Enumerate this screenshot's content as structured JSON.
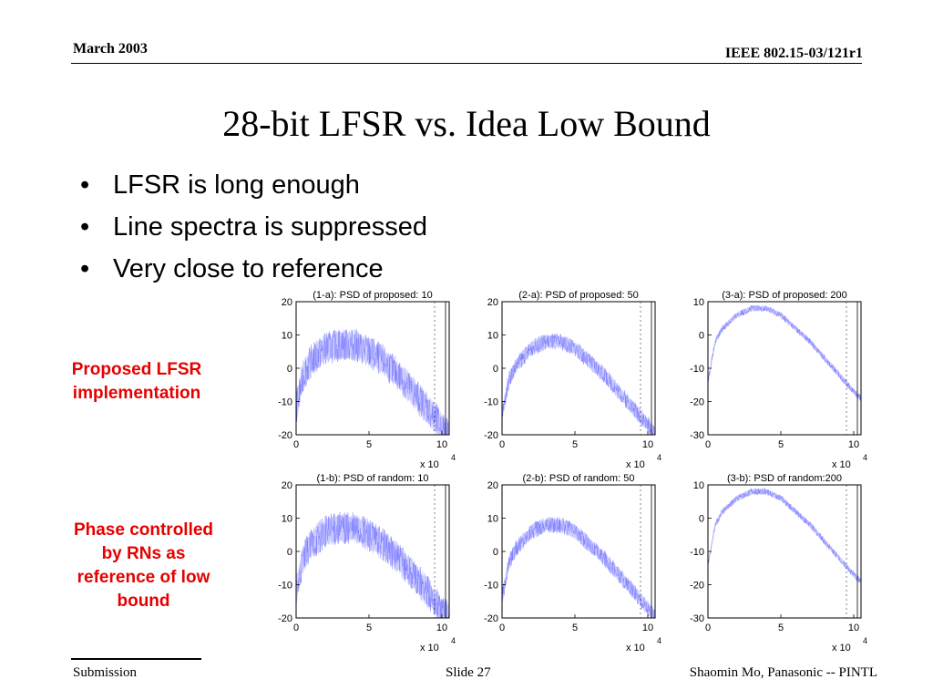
{
  "header": {
    "date": "March 2003",
    "doc_id": "IEEE 802.15-03/121r1"
  },
  "title": "28-bit LFSR vs. Idea Low Bound",
  "bullets": [
    "LFSR is long enough",
    "Line spectra is suppressed",
    "Very close to reference"
  ],
  "labels": {
    "proposed": [
      "Proposed LFSR",
      "implementation"
    ],
    "random": [
      "Phase controlled",
      "by RNs as",
      "reference of low",
      "bound"
    ]
  },
  "footer": {
    "left": "Submission",
    "center": "Slide 27",
    "right": "Shaomin Mo, Panasonic -- PINTL"
  },
  "colors": {
    "accent": "#e60000",
    "trace": "#6b6bff"
  },
  "chart_data": [
    {
      "type": "line",
      "title": "(1-a): PSD of proposed: 10",
      "xlim": [
        0,
        105000
      ],
      "ylim": [
        -20,
        20
      ],
      "xticks": [
        "0",
        "5",
        "10"
      ],
      "yticks": [
        "20",
        "10",
        "0",
        "-10",
        "-20"
      ],
      "multiplier": "x 10",
      "multiplier_exp": "4",
      "x": [
        0,
        5000,
        10000,
        20000,
        30000,
        40000,
        50000,
        60000,
        70000,
        80000,
        90000,
        100000,
        105000
      ],
      "y": [
        -12,
        -2,
        2,
        6,
        7,
        7,
        5,
        2,
        -2,
        -7,
        -12,
        -18,
        -20
      ],
      "spread": 5
    },
    {
      "type": "line",
      "title": "(2-a): PSD of proposed: 50",
      "xlim": [
        0,
        105000
      ],
      "ylim": [
        -20,
        20
      ],
      "xticks": [
        "0",
        "5",
        "10"
      ],
      "yticks": [
        "20",
        "10",
        "0",
        "-10",
        "-20"
      ],
      "multiplier": "x 10",
      "multiplier_exp": "4",
      "x": [
        0,
        5000,
        10000,
        20000,
        30000,
        40000,
        50000,
        60000,
        70000,
        80000,
        90000,
        100000,
        105000
      ],
      "y": [
        -14,
        -3,
        1,
        6,
        8,
        8,
        6,
        2,
        -2,
        -7,
        -12,
        -17,
        -20
      ],
      "spread": 2.5
    },
    {
      "type": "line",
      "title": "(3-a): PSD of proposed: 200",
      "xlim": [
        0,
        105000
      ],
      "ylim": [
        -30,
        10
      ],
      "xticks": [
        "0",
        "5",
        "10"
      ],
      "yticks": [
        "10",
        "0",
        "-10",
        "-20",
        "-30"
      ],
      "multiplier": "x 10",
      "multiplier_exp": "4",
      "x": [
        0,
        5000,
        10000,
        20000,
        30000,
        40000,
        50000,
        60000,
        70000,
        80000,
        90000,
        100000,
        105000
      ],
      "y": [
        -14,
        -2,
        2,
        6,
        8,
        8,
        6,
        2,
        -2,
        -7,
        -12,
        -17,
        -19
      ],
      "spread": 1
    },
    {
      "type": "line",
      "title": "(1-b): PSD of random: 10",
      "xlim": [
        0,
        105000
      ],
      "ylim": [
        -20,
        20
      ],
      "xticks": [
        "0",
        "5",
        "10"
      ],
      "yticks": [
        "20",
        "10",
        "0",
        "-10",
        "-20"
      ],
      "multiplier": "x 10",
      "multiplier_exp": "4",
      "x": [
        0,
        5000,
        10000,
        20000,
        30000,
        40000,
        50000,
        60000,
        70000,
        80000,
        90000,
        100000,
        105000
      ],
      "y": [
        -12,
        -2,
        2,
        6,
        7,
        7,
        5,
        2,
        -2,
        -7,
        -12,
        -18,
        -20
      ],
      "spread": 5
    },
    {
      "type": "line",
      "title": "(2-b): PSD of random: 50",
      "xlim": [
        0,
        105000
      ],
      "ylim": [
        -20,
        20
      ],
      "xticks": [
        "0",
        "5",
        "10"
      ],
      "yticks": [
        "20",
        "10",
        "0",
        "-10",
        "-20"
      ],
      "multiplier": "x 10",
      "multiplier_exp": "4",
      "x": [
        0,
        5000,
        10000,
        20000,
        30000,
        40000,
        50000,
        60000,
        70000,
        80000,
        90000,
        100000,
        105000
      ],
      "y": [
        -14,
        -3,
        1,
        6,
        8,
        8,
        6,
        2,
        -2,
        -7,
        -12,
        -17,
        -20
      ],
      "spread": 2.5
    },
    {
      "type": "line",
      "title": "(3-b): PSD of random:200",
      "xlim": [
        0,
        105000
      ],
      "ylim": [
        -30,
        10
      ],
      "xticks": [
        "0",
        "5",
        "10"
      ],
      "yticks": [
        "10",
        "0",
        "-10",
        "-20",
        "-30"
      ],
      "multiplier": "x 10",
      "multiplier_exp": "4",
      "x": [
        0,
        5000,
        10000,
        20000,
        30000,
        40000,
        50000,
        60000,
        70000,
        80000,
        90000,
        100000,
        105000
      ],
      "y": [
        -14,
        -2,
        2,
        6,
        8,
        8,
        6,
        2,
        -2,
        -7,
        -12,
        -17,
        -19
      ],
      "spread": 1
    }
  ]
}
